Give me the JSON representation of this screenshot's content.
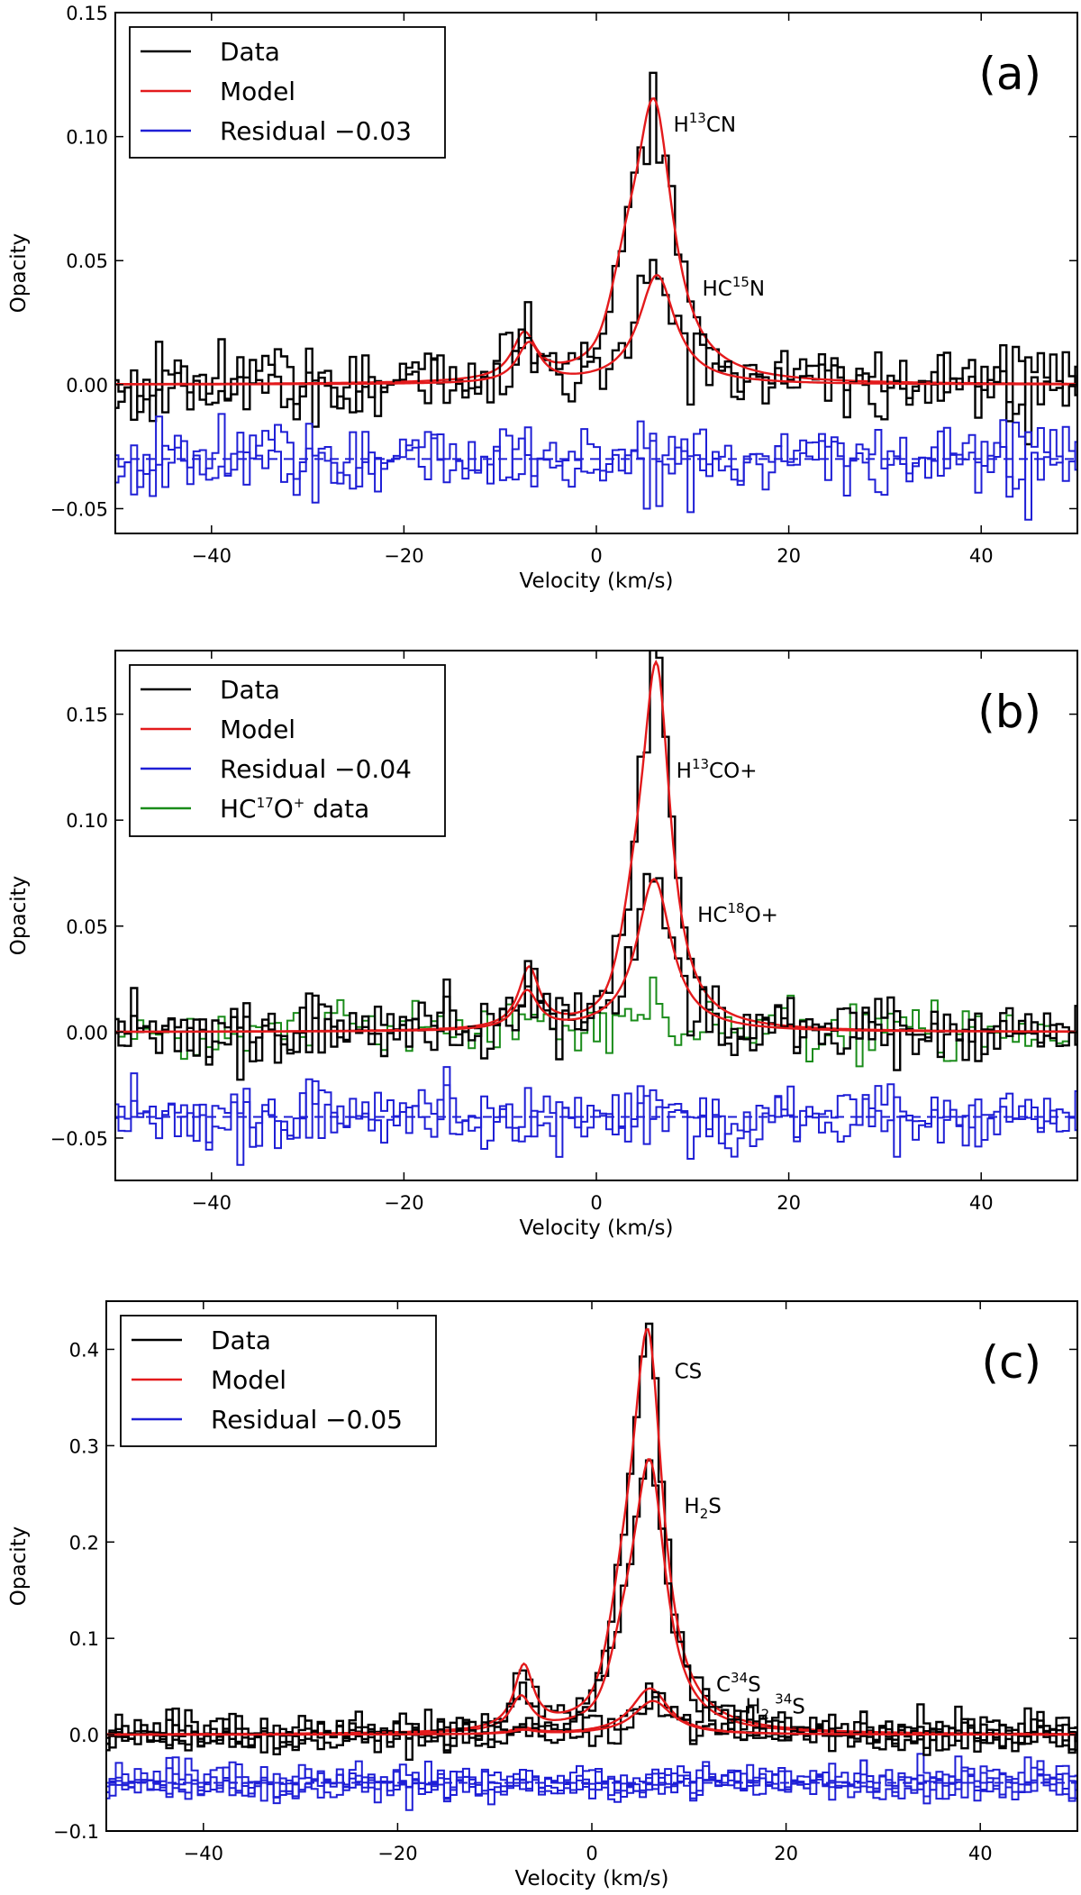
{
  "colors": {
    "data": "#000000",
    "model": "#e31a1c",
    "residual": "#1f1fd6",
    "hc17o": "#1a8c1a"
  },
  "chart_data": [
    {
      "type": "line",
      "panel": "(a)",
      "xlabel": "Velocity (km/s)",
      "ylabel": "Opacity",
      "xlim": [
        -50,
        50
      ],
      "ylim": [
        -0.06,
        0.15
      ],
      "xticks": [
        -40,
        -20,
        0,
        20,
        40
      ],
      "xtick_labels": [
        "−40",
        "−20",
        "0",
        "20",
        "40"
      ],
      "yticks": [
        -0.05,
        0.0,
        0.05,
        0.1,
        0.15
      ],
      "ytick_labels": [
        "−0.05",
        "0.00",
        "0.05",
        "0.10",
        "0.15"
      ],
      "legend": [
        {
          "label": "Data",
          "color": "data"
        },
        {
          "label": "Model",
          "color": "model"
        },
        {
          "label": "Residual −0.03",
          "color": "residual"
        }
      ],
      "annotations": [
        {
          "base": "H",
          "sup": "13",
          "rest": "CN",
          "x": 8,
          "y": 0.102
        },
        {
          "base": "HC",
          "sup": "15",
          "rest": "N",
          "x": 11,
          "y": 0.036
        }
      ],
      "residual_offset": -0.03,
      "lines": [
        {
          "name": "H13CN",
          "amp": 0.113,
          "center": 6.0,
          "width": 2.4,
          "sat": 3.0,
          "amp2": 0.018,
          "center2": -7.5,
          "width2": 1.5
        },
        {
          "name": "HC15N",
          "amp": 0.044,
          "center": 6.3,
          "width": 2.3,
          "sat": 0.0,
          "amp2": 0.016,
          "center2": -7.0,
          "width2": 1.5
        }
      ],
      "data_noise": 0.007,
      "residual_noise": 0.007
    },
    {
      "type": "line",
      "panel": "(b)",
      "xlabel": "Velocity (km/s)",
      "ylabel": "Opacity",
      "xlim": [
        -50,
        50
      ],
      "ylim": [
        -0.07,
        0.18
      ],
      "xticks": [
        -40,
        -20,
        0,
        20,
        40
      ],
      "xtick_labels": [
        "−40",
        "−20",
        "0",
        "20",
        "40"
      ],
      "yticks": [
        -0.05,
        0.0,
        0.05,
        0.1,
        0.15
      ],
      "ytick_labels": [
        "−0.05",
        "0.00",
        "0.05",
        "0.10",
        "0.15"
      ],
      "legend": [
        {
          "label": "Data",
          "color": "data"
        },
        {
          "label": "Model",
          "color": "model"
        },
        {
          "label": "Residual −0.04",
          "color": "residual"
        },
        {
          "label_base": "HC",
          "label_sup": "17",
          "label_rest": "O",
          "label_sup2": "+",
          "label_end": " data",
          "color": "hc17o"
        }
      ],
      "annotations": [
        {
          "base": "H",
          "sup": "13",
          "rest": "CO+",
          "x": 8.3,
          "y": 0.12
        },
        {
          "base": "HC",
          "sup": "18",
          "rest": "O+",
          "x": 10.5,
          "y": 0.052
        }
      ],
      "residual_offset": -0.04,
      "lines": [
        {
          "name": "H13CO+",
          "amp": 0.165,
          "center": 6.3,
          "width": 1.8,
          "sat": 2.2,
          "amp2": 0.028,
          "center2": -7.0,
          "width2": 1.3
        },
        {
          "name": "HC18O+",
          "amp": 0.072,
          "center": 6.0,
          "width": 2.2,
          "sat": 0.0,
          "amp2": 0.018,
          "center2": -7.2,
          "width2": 1.4
        }
      ],
      "data_noise": 0.008,
      "residual_noise": 0.008,
      "hc17o_amp": 0.012
    },
    {
      "type": "line",
      "panel": "(c)",
      "xlabel": "Velocity (km/s)",
      "ylabel": "Opacity",
      "xlim": [
        -50,
        50
      ],
      "ylim": [
        -0.1,
        0.45
      ],
      "xticks": [
        -40,
        -20,
        0,
        20,
        40
      ],
      "xtick_labels": [
        "−40",
        "−20",
        "0",
        "20",
        "40"
      ],
      "yticks": [
        -0.1,
        0.0,
        0.1,
        0.2,
        0.3,
        0.4
      ],
      "ytick_labels": [
        "−0.1",
        "0.0",
        "0.1",
        "0.2",
        "0.3",
        "0.4"
      ],
      "legend": [
        {
          "label": "Data",
          "color": "data"
        },
        {
          "label": "Model",
          "color": "model"
        },
        {
          "label": "Residual −0.05",
          "color": "residual"
        }
      ],
      "annotations": [
        {
          "base": "CS",
          "sup": "",
          "rest": "",
          "x": 8.5,
          "y": 0.37
        },
        {
          "base": "H",
          "sub": "2",
          "rest": "S",
          "x": 9.5,
          "y": 0.23
        },
        {
          "base": "C",
          "sup": "34",
          "rest": "S",
          "x": 12.8,
          "y": 0.045
        },
        {
          "base": "H",
          "sub": "2",
          "sup2": "34",
          "rest": "S",
          "x": 15.8,
          "y": 0.022
        }
      ],
      "residual_offset": -0.05,
      "lines": [
        {
          "name": "CS",
          "amp": 0.405,
          "center": 5.8,
          "width": 1.9,
          "sat": 2.5,
          "amp2": 0.065,
          "center2": -7.0,
          "width2": 1.2
        },
        {
          "name": "H2S",
          "amp": 0.275,
          "center": 6.0,
          "width": 2.0,
          "sat": 2.5,
          "amp2": 0.035,
          "center2": -7.3,
          "width2": 1.3
        },
        {
          "name": "C34S",
          "amp": 0.048,
          "center": 6.0,
          "width": 2.3,
          "sat": 0.0,
          "amp2": 0.006,
          "center2": -7.0,
          "width2": 1.5
        },
        {
          "name": "H2 34S",
          "amp": 0.035,
          "center": 6.3,
          "width": 2.4,
          "sat": 0.0,
          "amp2": 0.004,
          "center2": -7.0,
          "width2": 1.5
        }
      ],
      "data_noise": 0.009,
      "residual_noise": 0.009
    }
  ]
}
